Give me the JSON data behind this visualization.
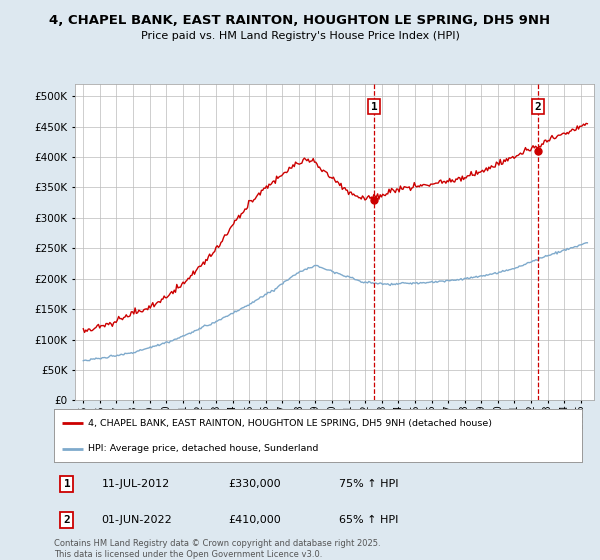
{
  "title": "4, CHAPEL BANK, EAST RAINTON, HOUGHTON LE SPRING, DH5 9NH",
  "subtitle": "Price paid vs. HM Land Registry's House Price Index (HPI)",
  "ylim": [
    0,
    520000
  ],
  "yticks": [
    0,
    50000,
    100000,
    150000,
    200000,
    250000,
    300000,
    350000,
    400000,
    450000,
    500000
  ],
  "xlim_start": 1994.5,
  "xlim_end": 2025.8,
  "xticks": [
    1995,
    1996,
    1997,
    1998,
    1999,
    2000,
    2001,
    2002,
    2003,
    2004,
    2005,
    2006,
    2007,
    2008,
    2009,
    2010,
    2011,
    2012,
    2013,
    2014,
    2015,
    2016,
    2017,
    2018,
    2019,
    2020,
    2021,
    2022,
    2023,
    2024,
    2025
  ],
  "sale1_date": 2012.53,
  "sale1_price": 330000,
  "sale1_label": "1",
  "sale1_pct": "75% ↑ HPI",
  "sale1_datestr": "11-JUL-2012",
  "sale2_date": 2022.42,
  "sale2_price": 410000,
  "sale2_label": "2",
  "sale2_pct": "65% ↑ HPI",
  "sale2_datestr": "01-JUN-2022",
  "red_color": "#cc0000",
  "blue_color": "#7faacc",
  "legend_label_red": "4, CHAPEL BANK, EAST RAINTON, HOUGHTON LE SPRING, DH5 9NH (detached house)",
  "legend_label_blue": "HPI: Average price, detached house, Sunderland",
  "footnote": "Contains HM Land Registry data © Crown copyright and database right 2025.\nThis data is licensed under the Open Government Licence v3.0.",
  "bg_color": "#dde8f0",
  "plot_bg": "#ffffff",
  "grid_color": "#bbbbbb",
  "blue_keypoints_t": [
    0,
    0.04,
    0.1,
    0.18,
    0.26,
    0.32,
    0.38,
    0.42,
    0.46,
    0.5,
    0.55,
    0.6,
    0.65,
    0.7,
    0.75,
    0.8,
    0.85,
    0.9,
    0.95,
    1.0
  ],
  "blue_keypoints_v": [
    65000,
    70000,
    80000,
    100000,
    130000,
    155000,
    185000,
    210000,
    225000,
    215000,
    200000,
    195000,
    198000,
    200000,
    205000,
    210000,
    220000,
    235000,
    250000,
    263000
  ],
  "red_keypoints_t": [
    0,
    0.03,
    0.08,
    0.14,
    0.2,
    0.26,
    0.3,
    0.34,
    0.38,
    0.42,
    0.45,
    0.48,
    0.52,
    0.55,
    0.58,
    0.62,
    0.66,
    0.7,
    0.74,
    0.78,
    0.82,
    0.86,
    0.9,
    0.94,
    0.97,
    1.0
  ],
  "red_keypoints_v": [
    115000,
    120000,
    135000,
    155000,
    190000,
    240000,
    290000,
    330000,
    360000,
    385000,
    395000,
    375000,
    345000,
    330000,
    335000,
    345000,
    350000,
    355000,
    360000,
    370000,
    385000,
    400000,
    415000,
    435000,
    445000,
    455000
  ]
}
